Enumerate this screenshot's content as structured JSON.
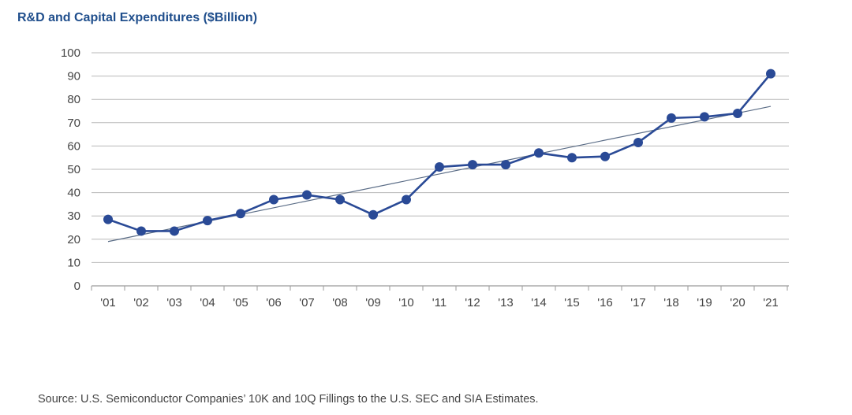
{
  "title": "R&D and Capital Expenditures ($Billion)",
  "source": "Source: U.S. Semiconductor Companies’ 10K and 10Q Fillings to the U.S. SEC and SIA Estimates.",
  "colors": {
    "series": "#2a4a96",
    "trend": "#5a6c86",
    "grid": "#b8b8b8",
    "title": "#1f4e8c",
    "text": "#444444"
  },
  "chart_data": {
    "type": "line",
    "title": "R&D and Capital Expenditures ($Billion)",
    "xlabel": "",
    "ylabel": "",
    "ylim": [
      0,
      100
    ],
    "yticks": [
      "0",
      "10",
      "20",
      "30",
      "40",
      "50",
      "60",
      "70",
      "80",
      "90",
      "100"
    ],
    "categories": [
      "'01",
      "'02",
      "'03",
      "'04",
      "'05",
      "'06",
      "'07",
      "'08",
      "'09",
      "'10",
      "'11",
      "'12",
      "'13",
      "'14",
      "'15",
      "'16",
      "'17",
      "'18",
      "'19",
      "'20",
      "'21"
    ],
    "series": [
      {
        "name": "R&D and Capital Expenditures",
        "values": [
          28.5,
          23.5,
          23.5,
          28,
          31,
          37,
          39,
          37,
          30.5,
          37,
          51,
          52,
          52,
          57,
          55,
          55.5,
          61.5,
          72,
          72.5,
          74,
          91
        ]
      }
    ],
    "trendline": {
      "start": 19,
      "end": 77
    },
    "grid": true
  }
}
